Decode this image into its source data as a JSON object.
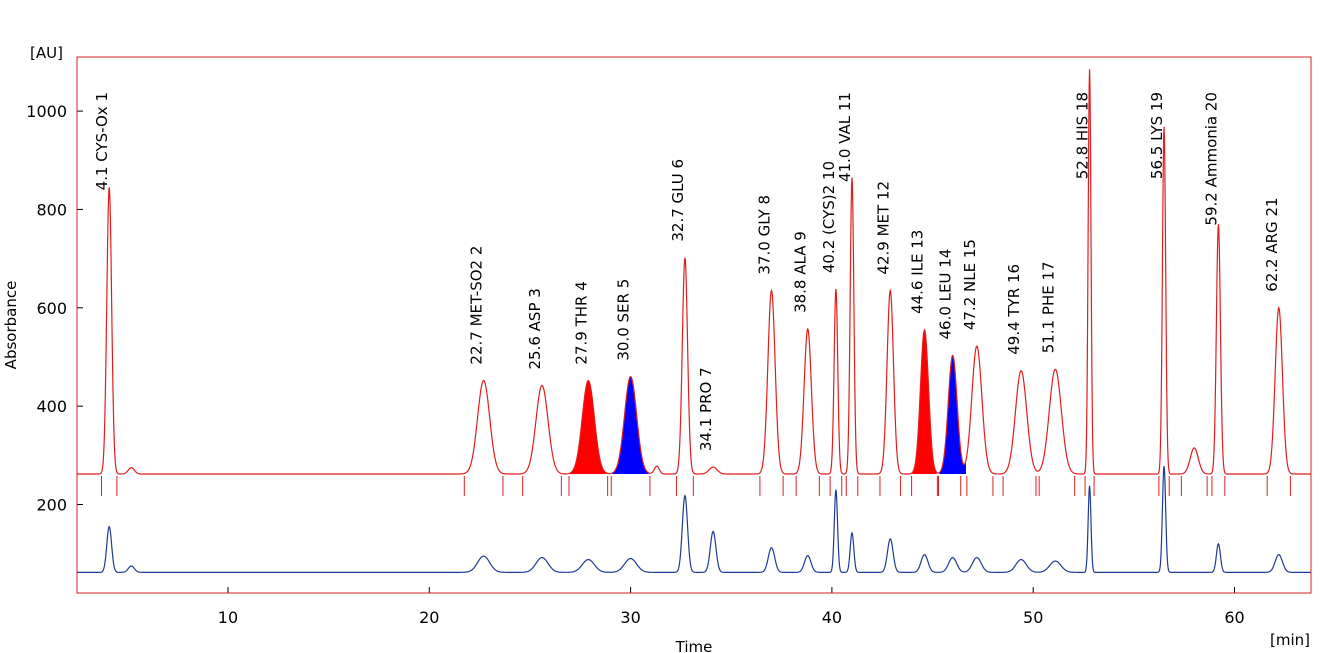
{
  "chart_data": {
    "type": "line",
    "ylabel": "Absorbance",
    "y_unit_label": "[AU]",
    "xlabel": "Time",
    "x_unit_label": "[min]",
    "xlim": [
      2.5,
      63.8
    ],
    "ylim": [
      20,
      1110
    ],
    "x_ticks": [
      10,
      20,
      30,
      40,
      50,
      60
    ],
    "y_ticks": [
      200,
      400,
      600,
      800,
      1000
    ],
    "grid": false,
    "frame_color": "#d42020",
    "series": [
      {
        "color": "#e11d1d",
        "baseline": 262,
        "peaks": [
          {
            "t": 4.1,
            "height": 845,
            "width": 0.12
          },
          {
            "t": 5.2,
            "height": 275,
            "width": 0.15
          },
          {
            "t": 22.7,
            "height": 452,
            "width": 0.3
          },
          {
            "t": 25.6,
            "height": 442,
            "width": 0.3
          },
          {
            "t": 27.9,
            "height": 452,
            "width": 0.3
          },
          {
            "t": 30.0,
            "height": 460,
            "width": 0.3
          },
          {
            "t": 31.3,
            "height": 278,
            "width": 0.12
          },
          {
            "t": 32.7,
            "height": 702,
            "width": 0.13
          },
          {
            "t": 34.1,
            "height": 276,
            "width": 0.2
          },
          {
            "t": 37.0,
            "height": 635,
            "width": 0.18
          },
          {
            "t": 38.8,
            "height": 557,
            "width": 0.18
          },
          {
            "t": 40.2,
            "height": 638,
            "width": 0.09
          },
          {
            "t": 41.0,
            "height": 865,
            "width": 0.09
          },
          {
            "t": 42.9,
            "height": 635,
            "width": 0.16
          },
          {
            "t": 44.6,
            "height": 555,
            "width": 0.2
          },
          {
            "t": 46.0,
            "height": 503,
            "width": 0.22
          },
          {
            "t": 47.2,
            "height": 522,
            "width": 0.25
          },
          {
            "t": 49.4,
            "height": 472,
            "width": 0.28
          },
          {
            "t": 51.1,
            "height": 475,
            "width": 0.3
          },
          {
            "t": 52.8,
            "height": 1085,
            "width": 0.07
          },
          {
            "t": 56.5,
            "height": 968,
            "width": 0.08
          },
          {
            "t": 58.0,
            "height": 315,
            "width": 0.2
          },
          {
            "t": 59.2,
            "height": 770,
            "width": 0.1
          },
          {
            "t": 62.2,
            "height": 600,
            "width": 0.18
          }
        ],
        "filled_peaks": [
          {
            "index": 4,
            "color": "#ff0000"
          },
          {
            "index": 5,
            "color": "#0000ff"
          },
          {
            "index": 14,
            "color": "#ff0000"
          },
          {
            "index": 15,
            "color": "#0000ff"
          }
        ]
      },
      {
        "color": "#1f3a93",
        "baseline": 62,
        "peaks": [
          {
            "t": 4.1,
            "height": 155,
            "width": 0.12
          },
          {
            "t": 5.2,
            "height": 75,
            "width": 0.15
          },
          {
            "t": 22.7,
            "height": 95,
            "width": 0.3
          },
          {
            "t": 25.6,
            "height": 92,
            "width": 0.3
          },
          {
            "t": 27.9,
            "height": 88,
            "width": 0.3
          },
          {
            "t": 30.0,
            "height": 90,
            "width": 0.3
          },
          {
            "t": 32.7,
            "height": 218,
            "width": 0.13
          },
          {
            "t": 34.1,
            "height": 145,
            "width": 0.14
          },
          {
            "t": 37.0,
            "height": 112,
            "width": 0.16
          },
          {
            "t": 38.8,
            "height": 96,
            "width": 0.16
          },
          {
            "t": 40.2,
            "height": 230,
            "width": 0.08
          },
          {
            "t": 41.0,
            "height": 142,
            "width": 0.09
          },
          {
            "t": 42.9,
            "height": 130,
            "width": 0.14
          },
          {
            "t": 44.6,
            "height": 98,
            "width": 0.17
          },
          {
            "t": 46.0,
            "height": 92,
            "width": 0.2
          },
          {
            "t": 47.2,
            "height": 92,
            "width": 0.22
          },
          {
            "t": 49.4,
            "height": 88,
            "width": 0.26
          },
          {
            "t": 51.1,
            "height": 85,
            "width": 0.28
          },
          {
            "t": 52.8,
            "height": 238,
            "width": 0.07
          },
          {
            "t": 56.5,
            "height": 278,
            "width": 0.08
          },
          {
            "t": 59.2,
            "height": 120,
            "width": 0.1
          },
          {
            "t": 62.2,
            "height": 98,
            "width": 0.18
          }
        ]
      }
    ],
    "peak_labels": [
      {
        "t": 4.1,
        "text": "4.1 CYS-Ox",
        "number": "1"
      },
      {
        "t": 22.7,
        "text": "22.7 MET-SO2",
        "number": "2"
      },
      {
        "t": 25.6,
        "text": "25.6 ASP",
        "number": "3"
      },
      {
        "t": 27.9,
        "text": "27.9 THR",
        "number": "4"
      },
      {
        "t": 30.0,
        "text": "30.0 SER",
        "number": "5"
      },
      {
        "t": 32.7,
        "text": "32.7 GLU",
        "number": "6"
      },
      {
        "t": 34.1,
        "text": "34.1 PRO",
        "number": "7"
      },
      {
        "t": 37.0,
        "text": "37.0 GLY",
        "number": "8"
      },
      {
        "t": 38.8,
        "text": "38.8 ALA",
        "number": "9"
      },
      {
        "t": 40.2,
        "text": "40.2 (CYS)2",
        "number": "10"
      },
      {
        "t": 41.0,
        "text": "41.0 VAL",
        "number": "11"
      },
      {
        "t": 42.9,
        "text": "42.9 MET",
        "number": "12"
      },
      {
        "t": 44.6,
        "text": "44.6 ILE",
        "number": "13"
      },
      {
        "t": 46.0,
        "text": "46.0 LEU",
        "number": "14"
      },
      {
        "t": 47.2,
        "text": "47.2 NLE",
        "number": "15"
      },
      {
        "t": 49.4,
        "text": "49.4 TYR",
        "number": "16"
      },
      {
        "t": 51.1,
        "text": "51.1 PHE",
        "number": "17"
      },
      {
        "t": 52.8,
        "text": "52.8 HIS",
        "number": "18"
      },
      {
        "t": 56.5,
        "text": "56.5 LYS",
        "number": "19"
      },
      {
        "t": 59.2,
        "text": "59.2 Ammonia",
        "number": "20"
      },
      {
        "t": 62.2,
        "text": "62.2 ARG",
        "number": "21"
      }
    ]
  }
}
